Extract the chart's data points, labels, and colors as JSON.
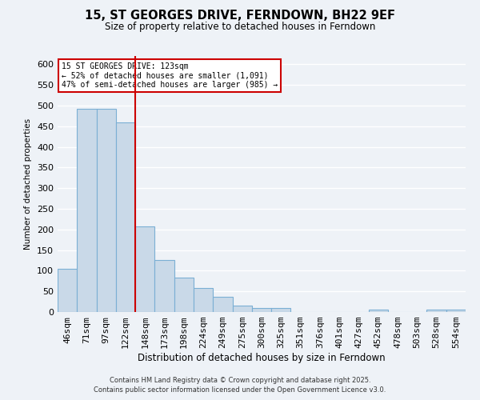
{
  "title": "15, ST GEORGES DRIVE, FERNDOWN, BH22 9EF",
  "subtitle": "Size of property relative to detached houses in Ferndown",
  "xlabel": "Distribution of detached houses by size in Ferndown",
  "ylabel": "Number of detached properties",
  "bins": [
    "46sqm",
    "71sqm",
    "97sqm",
    "122sqm",
    "148sqm",
    "173sqm",
    "198sqm",
    "224sqm",
    "249sqm",
    "275sqm",
    "300sqm",
    "325sqm",
    "351sqm",
    "376sqm",
    "401sqm",
    "427sqm",
    "452sqm",
    "478sqm",
    "503sqm",
    "528sqm",
    "554sqm"
  ],
  "values": [
    105,
    493,
    493,
    460,
    208,
    125,
    83,
    58,
    37,
    15,
    10,
    10,
    0,
    0,
    0,
    0,
    5,
    0,
    0,
    5,
    5
  ],
  "bar_color": "#c9d9e8",
  "bar_edge_color": "#7bafd4",
  "background_color": "#eef2f7",
  "grid_color": "#ffffff",
  "vline_x_index": 3,
  "vline_color": "#cc0000",
  "annotation_line1": "15 ST GEORGES DRIVE: 123sqm",
  "annotation_line2": "← 52% of detached houses are smaller (1,091)",
  "annotation_line3": "47% of semi-detached houses are larger (985) →",
  "annotation_box_color": "#ffffff",
  "annotation_box_edge_color": "#cc0000",
  "ylim": [
    0,
    620
  ],
  "yticks": [
    0,
    50,
    100,
    150,
    200,
    250,
    300,
    350,
    400,
    450,
    500,
    550,
    600
  ],
  "footer_line1": "Contains HM Land Registry data © Crown copyright and database right 2025.",
  "footer_line2": "Contains public sector information licensed under the Open Government Licence v3.0."
}
